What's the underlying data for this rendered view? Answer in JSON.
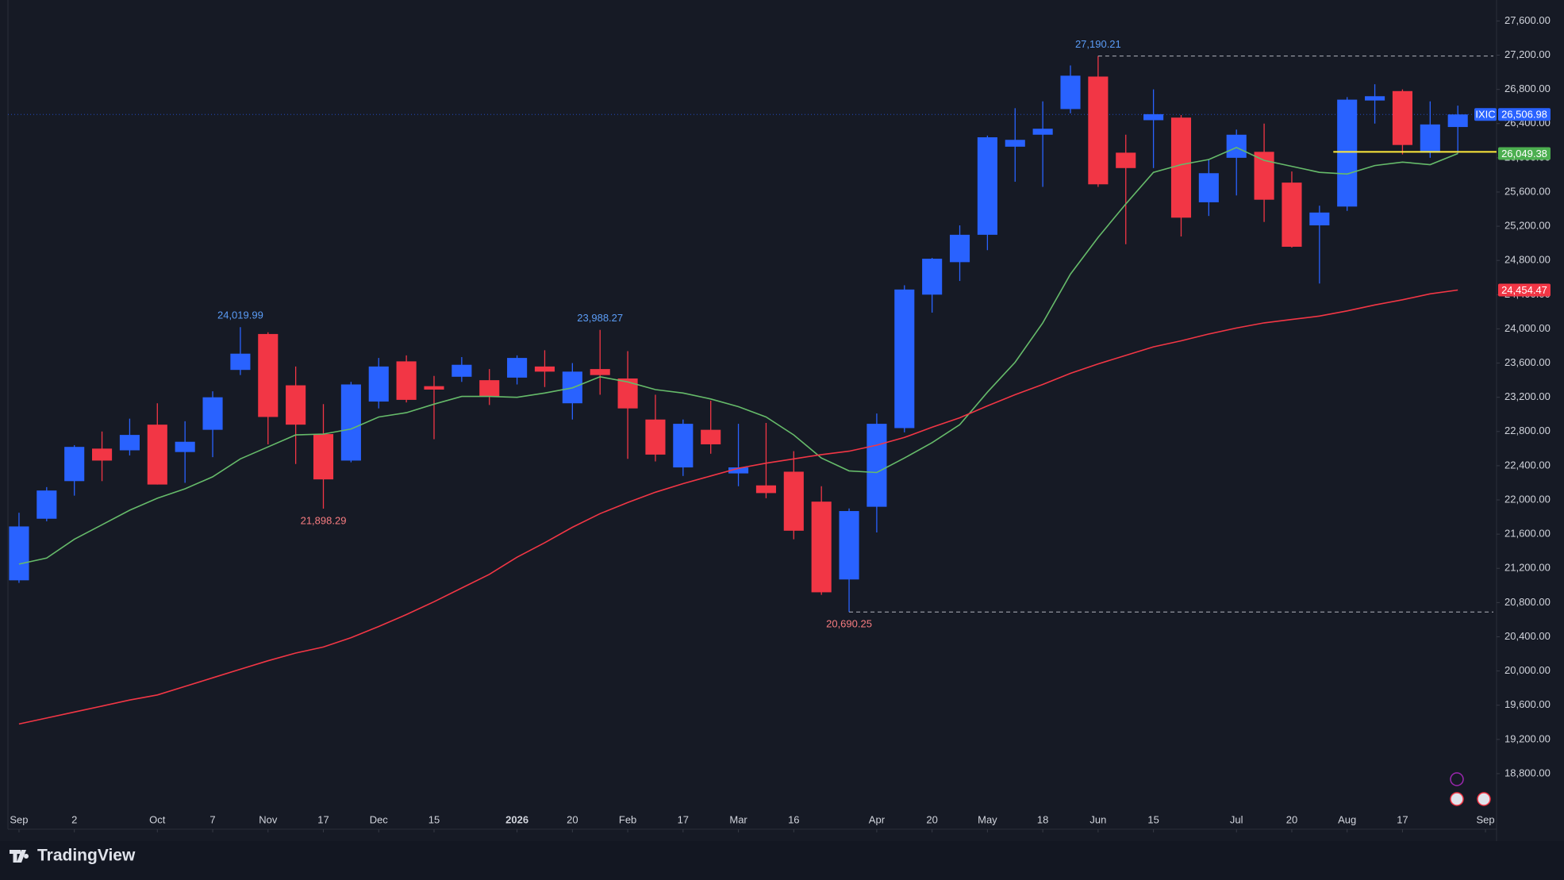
{
  "chart_data": {
    "type": "candlestick",
    "up_color": "#2962ff",
    "down_color": "#f23645",
    "xlim": [
      -0.4,
      53.4
    ],
    "ylim": [
      18150,
      27845
    ],
    "grid": false,
    "xticks": [
      {
        "value": 0,
        "label": "Sep"
      },
      2,
      {
        "value": 5,
        "label": "Oct"
      },
      7,
      {
        "value": 9,
        "label": "Nov"
      },
      {
        "value": 11,
        "label": "17"
      },
      {
        "value": 13,
        "label": "Dec"
      },
      15,
      {
        "value": 18,
        "label": "2026"
      },
      20,
      {
        "value": 22,
        "label": "Feb"
      },
      {
        "value": 24,
        "label": "17"
      },
      {
        "value": 26,
        "label": "Mar"
      },
      {
        "value": 28,
        "label": "16"
      },
      {
        "value": 31,
        "label": "Apr"
      },
      {
        "value": 33,
        "label": "20"
      },
      {
        "value": 35,
        "label": "May"
      },
      {
        "value": 37,
        "label": "18"
      },
      {
        "value": 39,
        "label": "Jun"
      },
      {
        "value": 41,
        "label": "15"
      },
      {
        "value": 44,
        "label": "Jul"
      },
      {
        "value": 46,
        "label": "20"
      },
      {
        "value": 48,
        "label": "Aug"
      },
      {
        "value": 50,
        "label": "17"
      },
      {
        "value": 53,
        "label": "Sep"
      }
    ],
    "yticks": [
      {
        "value": 18800,
        "label": "18,800.00"
      },
      {
        "value": 19200,
        "label": "19,200.00"
      },
      {
        "value": 19600,
        "label": "19,600.00"
      },
      {
        "value": 20000,
        "label": "20,000.00"
      },
      {
        "value": 20400,
        "label": "20,400.00"
      },
      {
        "value": 20800,
        "label": "20,800.00"
      },
      {
        "value": 21200,
        "label": "21,200.00"
      },
      {
        "value": 21600,
        "label": "21,600.00"
      },
      {
        "value": 22000,
        "label": "22,000.00"
      },
      {
        "value": 22400,
        "label": "22,400.00"
      },
      {
        "value": 22800,
        "label": "22,800.00"
      },
      {
        "value": 23200,
        "label": "23,200.00"
      },
      {
        "value": 23600,
        "label": "23,600.00"
      },
      {
        "value": 24000,
        "label": "24,000.00"
      },
      {
        "value": 24400,
        "label": "24,400.00"
      },
      {
        "value": 24800,
        "label": "24,800.00"
      },
      {
        "value": 25200,
        "label": "25,200.00"
      },
      {
        "value": 25600,
        "label": "25,600.00"
      },
      {
        "value": 26000,
        "label": "26,000.00"
      },
      {
        "value": 26400,
        "label": "26,400.00"
      },
      {
        "value": 26800,
        "label": "26,800.00"
      },
      {
        "value": 27200,
        "label": "27,200.00"
      },
      {
        "value": 27600,
        "label": "27,600.00"
      }
    ],
    "open": [
      21060,
      21780,
      22220,
      22600,
      22580,
      22880,
      22560,
      22820,
      23520,
      23940,
      23340,
      22770,
      22460,
      23150,
      23620,
      23330,
      23440,
      23400,
      23430,
      23560,
      23130,
      23530,
      23420,
      22940,
      22380,
      22820,
      22310,
      22170,
      22330,
      21980,
      21070,
      21920,
      22840,
      24400,
      24780,
      25100,
      26130,
      26270,
      26570,
      26950,
      26060,
      26440,
      26470,
      25480,
      26000,
      26070,
      25710,
      25210,
      25430,
      26670,
      26780,
      26060,
      26360
    ],
    "high": [
      21850,
      22150,
      22640,
      22800,
      22950,
      23130,
      22920,
      23270,
      24019.99,
      23960,
      23560,
      23120,
      23380,
      23660,
      23690,
      23450,
      23670,
      23530,
      23690,
      23750,
      23600,
      23988.27,
      23740,
      23230,
      22940,
      23160,
      22890,
      22900,
      22570,
      22160,
      21900,
      23010,
      24510,
      24830,
      25210,
      26260,
      26580,
      26660,
      27080,
      27190.21,
      26270,
      26800,
      26500,
      25980,
      26330,
      26400,
      25840,
      25440,
      26710,
      26860,
      26800,
      26660,
      26610
    ],
    "low": [
      21030,
      21750,
      22050,
      22220,
      22520,
      22180,
      22200,
      22500,
      23460,
      22650,
      22420,
      21898.29,
      22440,
      23070,
      23140,
      22710,
      23380,
      23110,
      23350,
      23320,
      22940,
      23230,
      22480,
      22450,
      22280,
      22540,
      22160,
      22020,
      21540,
      20890,
      20690.25,
      21620,
      22790,
      24190,
      24560,
      24920,
      25720,
      25660,
      26520,
      25660,
      24990,
      25880,
      25080,
      25320,
      25560,
      25250,
      24950,
      24530,
      25380,
      26400,
      26040,
      26000,
      26050
    ],
    "close": [
      21690,
      22110,
      22620,
      22460,
      22760,
      22180,
      22680,
      23200,
      23710,
      22970,
      22880,
      22240,
      23350,
      23560,
      23170,
      23290,
      23580,
      23210,
      23660,
      23500,
      23500,
      23460,
      23070,
      22530,
      22890,
      22650,
      22380,
      22080,
      21640,
      20920,
      21870,
      22890,
      24460,
      24820,
      25100,
      26240,
      26210,
      26340,
      26960,
      25690,
      25880,
      26510,
      25300,
      25820,
      26270,
      25510,
      24960,
      25360,
      26680,
      26720,
      26150,
      26390,
      26506.98
    ],
    "moving_averages": [
      {
        "color": "#66bb6a",
        "values": [
          21250,
          21320,
          21540,
          21710,
          21880,
          22020,
          22130,
          22270,
          22480,
          22620,
          22760,
          22770,
          22830,
          22970,
          23020,
          23120,
          23210,
          23210,
          23200,
          23250,
          23310,
          23440,
          23380,
          23290,
          23250,
          23180,
          23090,
          22970,
          22760,
          22490,
          22340,
          22320,
          22490,
          22670,
          22880,
          23260,
          23610,
          24070,
          24640,
          25070,
          25460,
          25830,
          25920,
          25980,
          26120,
          25970,
          25900,
          25830,
          25810,
          25910,
          25950,
          25920,
          26049.38
        ]
      },
      {
        "color": "#f23645",
        "values": [
          19380,
          19450,
          19520,
          19590,
          19660,
          19720,
          19820,
          19920,
          20020,
          20120,
          20210,
          20280,
          20390,
          20520,
          20660,
          20810,
          20970,
          21130,
          21330,
          21500,
          21680,
          21840,
          21970,
          22090,
          22190,
          22280,
          22370,
          22430,
          22480,
          22530,
          22570,
          22640,
          22730,
          22850,
          22960,
          23100,
          23230,
          23350,
          23480,
          23590,
          23690,
          23790,
          23860,
          23940,
          24010,
          24070,
          24110,
          24150,
          24210,
          24280,
          24340,
          24410,
          24454.47
        ]
      }
    ],
    "annotations": [
      {
        "label": "24,019.99",
        "x": 8,
        "value": 24019.99,
        "position": "above",
        "color": "#5b9cf6"
      },
      {
        "label": "21,898.29",
        "x": 11,
        "value": 21898.29,
        "position": "below",
        "color": "#f77c80"
      },
      {
        "label": "23,988.27",
        "x": 21,
        "value": 23988.27,
        "position": "above",
        "color": "#5b9cf6"
      },
      {
        "label": "20,690.25",
        "x": 30,
        "value": 20690.25,
        "position": "below",
        "color": "#f77c80",
        "dashed": true
      },
      {
        "label": "27,190.21",
        "x": 39,
        "value": 27190.21,
        "position": "above",
        "color": "#5b9cf6",
        "dashed": true
      }
    ],
    "hline": {
      "value": 26070,
      "from_x": 47.5,
      "color": "#ffeb3b"
    },
    "price_tags": [
      {
        "name": "IXIC",
        "value": 26506.98,
        "label": "26,506.98",
        "color": "#2962ff",
        "line": true
      },
      {
        "value": 26049.38,
        "label": "26,049.38",
        "color": "#4caf50"
      },
      {
        "value": 24454.47,
        "label": "24,454.47",
        "color": "#f23645"
      }
    ]
  },
  "footer": {
    "brand": "TradingView"
  }
}
